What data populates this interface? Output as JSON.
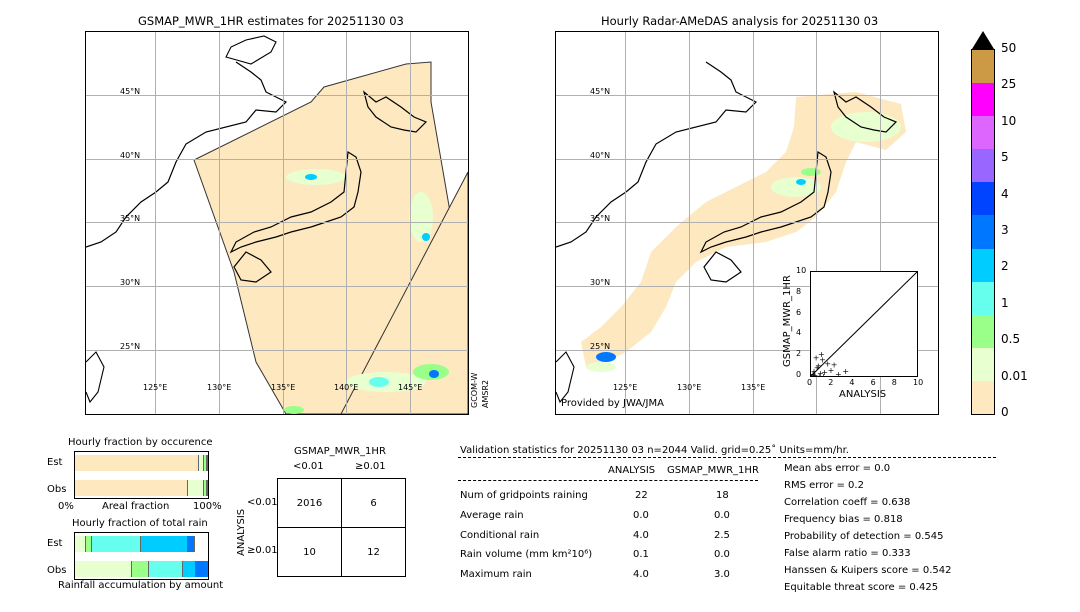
{
  "left_map": {
    "title": "GSMAP_MWR_1HR estimates for 20251130 03",
    "lat_labels": [
      "45°N",
      "40°N",
      "35°N",
      "30°N",
      "25°N"
    ],
    "lon_labels": [
      "125°E",
      "130°E",
      "135°E",
      "140°E",
      "145°E"
    ],
    "satellite_labels": [
      "GCOM-W",
      "AMSR2"
    ]
  },
  "right_map": {
    "title": "Hourly Radar-AMeDAS analysis for 20251130 03",
    "lat_labels": [
      "45°N",
      "40°N",
      "35°N",
      "30°N",
      "25°N"
    ],
    "lon_labels": [
      "125°E",
      "130°E",
      "135°E"
    ],
    "credit": "Provided by JWA/JMA"
  },
  "colorbar": {
    "levels": [
      "0",
      "0.01",
      "0.5",
      "1",
      "2",
      "3",
      "4",
      "5",
      "10",
      "25",
      "50"
    ],
    "colors": [
      "#fde8c0",
      "#e8ffd0",
      "#99ff88",
      "#66ffee",
      "#00ccff",
      "#0077ff",
      "#0044ff",
      "#9966ff",
      "#dd66ff",
      "#ff00ff",
      "#cc9944"
    ],
    "over_color": "#000000"
  },
  "scatter": {
    "xlabel": "ANALYSIS",
    "ylabel": "GSMAP_MWR_1HR",
    "ticks": [
      "0",
      "2",
      "4",
      "6",
      "8",
      "10"
    ]
  },
  "fraction_occurrence": {
    "title": "Hourly fraction by occurence",
    "rows": [
      "Est",
      "Obs"
    ],
    "axis_left": "0%",
    "axis_mid": "Areal fraction",
    "axis_right": "100%"
  },
  "fraction_rain": {
    "title": "Hourly fraction of total rain",
    "rows": [
      "Est",
      "Obs"
    ],
    "axis_label": "Rainfall accumulation by amount"
  },
  "contingency": {
    "title": "GSMAP_MWR_1HR",
    "col_labels": [
      "<0.01",
      "≥0.01"
    ],
    "row_axis": "ANALYSIS",
    "row_labels": [
      "<0.01",
      "≥0.01"
    ],
    "cells": [
      [
        "2016",
        "6"
      ],
      [
        "10",
        "12"
      ]
    ]
  },
  "validation": {
    "header": "Validation statistics for 20251130 03  n=2044 Valid. grid=0.25˚ Units=mm/hr.",
    "col_analysis": "ANALYSIS",
    "col_gsmap": "GSMAP_MWR_1HR",
    "rows": [
      {
        "label": "Num of gridpoints raining",
        "analysis": "22",
        "gsmap": "18"
      },
      {
        "label": "Average rain",
        "analysis": "0.0",
        "gsmap": "0.0"
      },
      {
        "label": "Conditional rain",
        "analysis": "4.0",
        "gsmap": "2.5"
      },
      {
        "label": "Rain volume (mm km²10⁶)",
        "analysis": "0.1",
        "gsmap": "0.0"
      },
      {
        "label": "Maximum rain",
        "analysis": "4.0",
        "gsmap": "3.0"
      }
    ],
    "scores": [
      "Mean abs error =    0.0",
      "RMS error =    0.2",
      "Correlation coeff =  0.638",
      "Frequency bias =  0.818",
      "Probability of detection =  0.545",
      "False alarm ratio =  0.333",
      "Hanssen & Kuipers score =  0.542",
      "Equitable threat score =  0.425"
    ]
  },
  "chart_data": [
    {
      "type": "scatter",
      "title": "",
      "xlabel": "ANALYSIS",
      "ylabel": "GSMAP_MWR_1HR",
      "xlim": [
        0,
        10
      ],
      "ylim": [
        0,
        10
      ],
      "points": [
        [
          0.1,
          0.2
        ],
        [
          0.2,
          0.5
        ],
        [
          0.3,
          0.1
        ],
        [
          0.5,
          0.8
        ],
        [
          0.6,
          1.0
        ],
        [
          0.8,
          0.3
        ],
        [
          1.0,
          1.6
        ],
        [
          1.2,
          0.4
        ],
        [
          0.4,
          1.8
        ],
        [
          1.5,
          1.2
        ],
        [
          1.8,
          0.6
        ],
        [
          2.1,
          1.1
        ],
        [
          2.5,
          0.2
        ],
        [
          0.2,
          0.1
        ],
        [
          0.7,
          0.0
        ],
        [
          1.1,
          0.0
        ],
        [
          3.2,
          0.5
        ],
        [
          0.9,
          2.1
        ]
      ]
    },
    {
      "type": "bar",
      "title": "Hourly fraction by occurence",
      "categories": [
        "Est",
        "Obs"
      ],
      "series": [
        {
          "values": [
            0.93,
            0.85
          ]
        },
        {
          "values": [
            0.04,
            0.12
          ]
        },
        {
          "values": [
            0.02,
            0.02
          ]
        },
        {
          "values": [
            0.01,
            0.01
          ]
        }
      ]
    },
    {
      "type": "bar",
      "title": "Hourly fraction of total rain",
      "categories": [
        "Est",
        "Obs"
      ],
      "series": [
        {
          "values": [
            0.08,
            0.43
          ]
        },
        {
          "values": [
            0.05,
            0.13
          ]
        },
        {
          "values": [
            0.37,
            0.25
          ]
        },
        {
          "values": [
            0.35,
            0.1
          ]
        },
        {
          "values": [
            0.05,
            0.09
          ]
        }
      ]
    }
  ]
}
